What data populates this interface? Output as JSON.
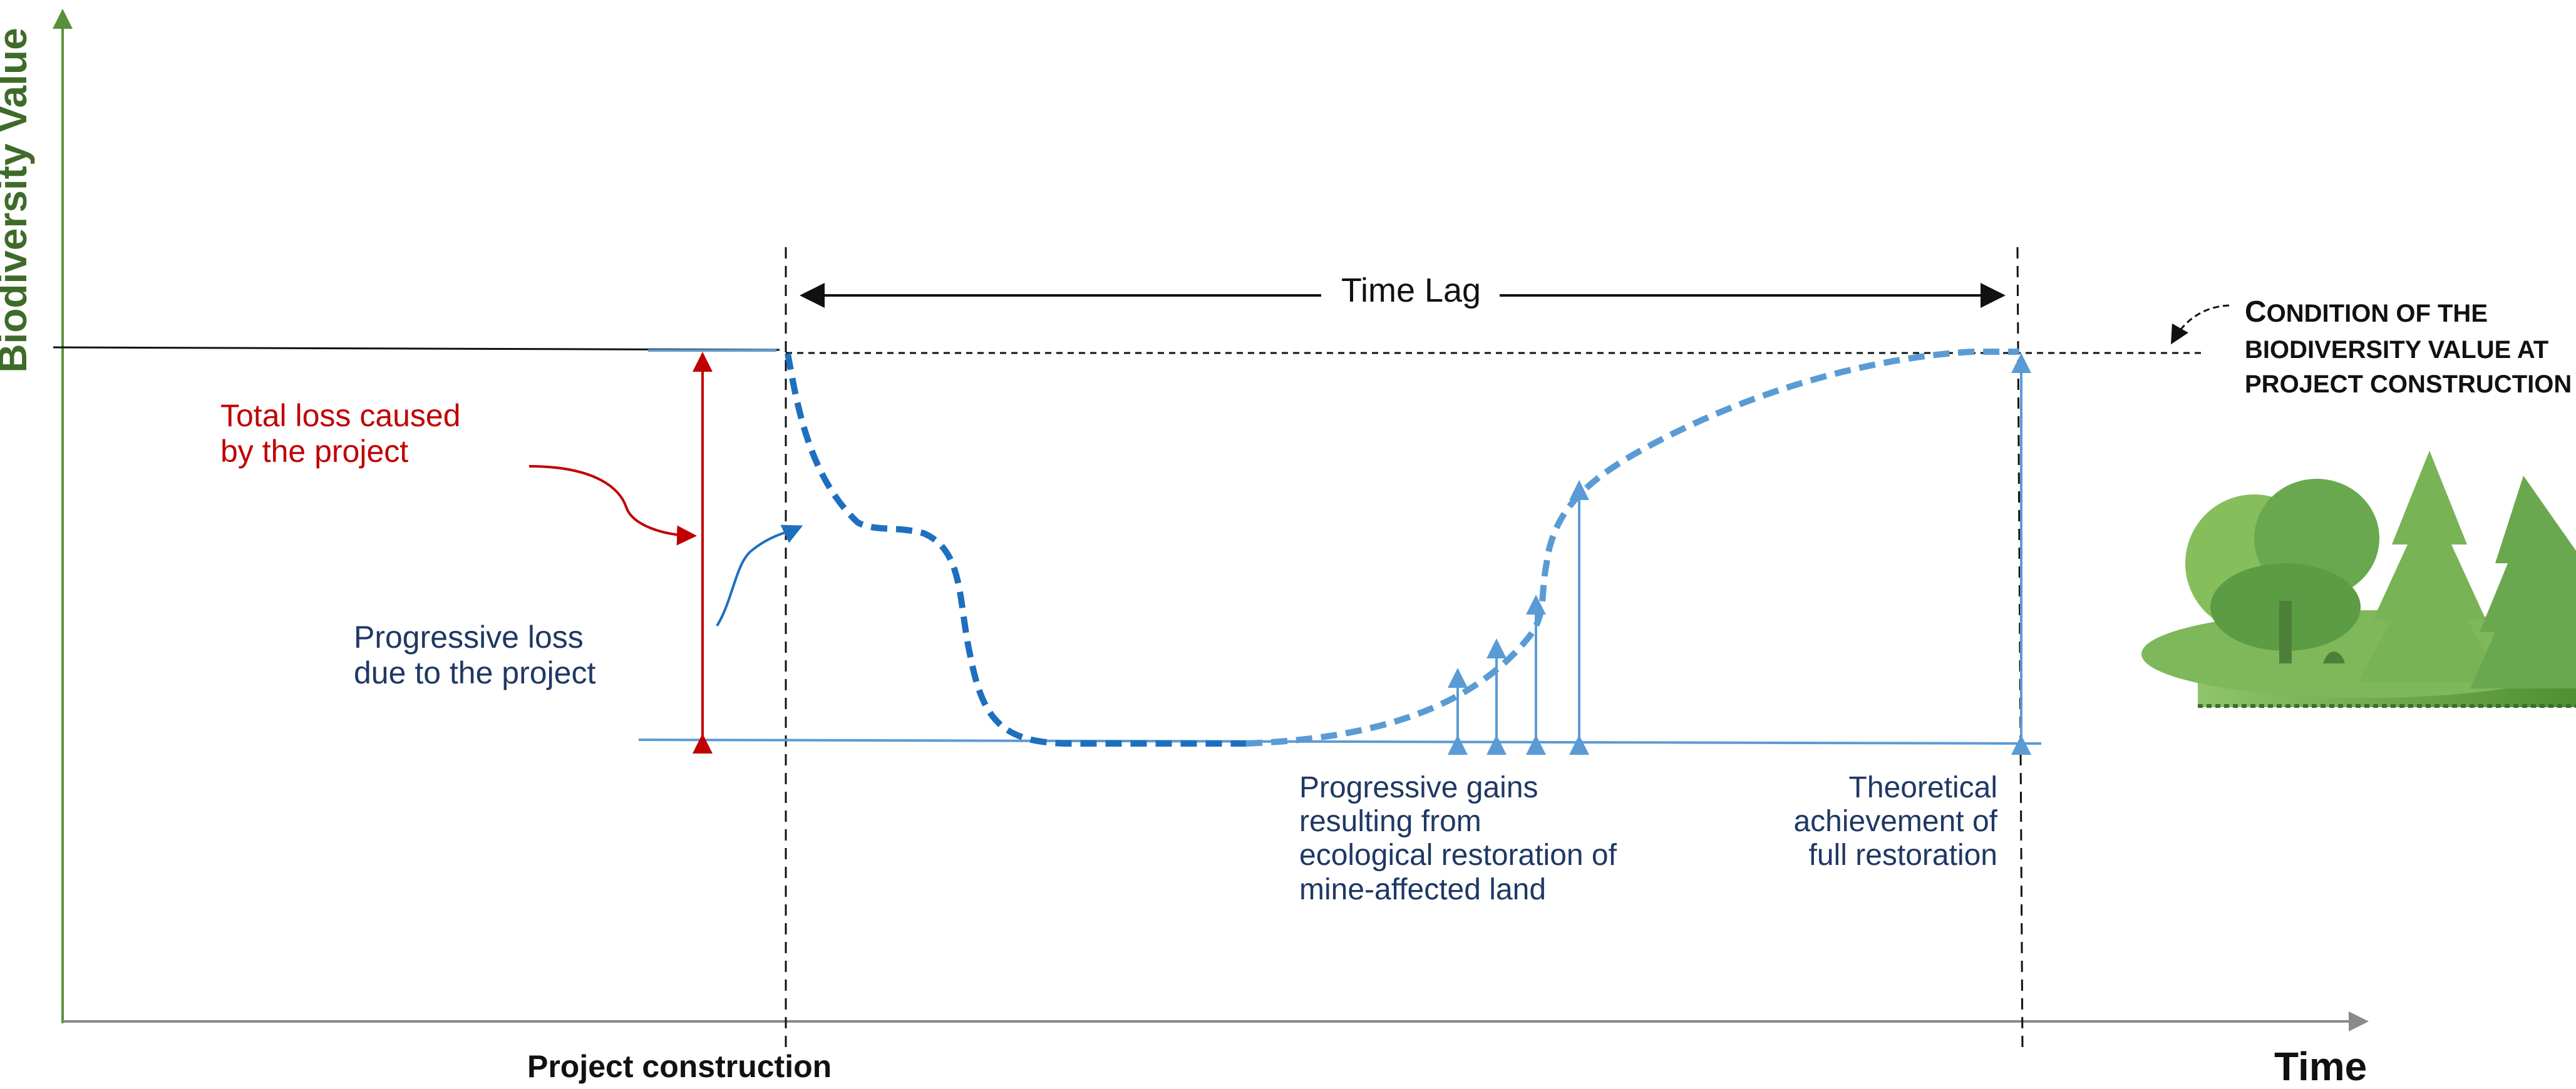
{
  "axes": {
    "y_label": "Biodiversity Value",
    "x_label": "Time"
  },
  "labels": {
    "project_construction": "Project construction",
    "time_lag": "Time Lag",
    "total_loss": [
      "Total loss caused",
      "by the project"
    ],
    "progressive_loss": [
      "Progressive loss",
      "due to the project"
    ],
    "progressive_gains": [
      "Progressive gains",
      "resulting from",
      "ecological restoration of",
      "mine-affected land"
    ],
    "theoretical": [
      "Theoretical",
      "achievement of",
      "full restoration"
    ],
    "condition_first_letter": "C",
    "condition_rest_first_line": "ONDITION OF THE",
    "condition_lines": [
      "BIODIVERSITY VALUE AT",
      "PROJECT CONSTRUCTION"
    ]
  },
  "colors": {
    "axis": "#8a8a8a",
    "y_axis_arrow": "#5a8f3c",
    "baseline": "#111111",
    "loss_arrow": "#c00000",
    "dashed_curve_dark": "#1e6fbf",
    "dashed_curve_light": "#5b9bd5",
    "floor_line": "#5b9bd5",
    "gain_arrows": "#5b9bd5",
    "text_dark_blue": "#1f3864",
    "tree_green": "#6aa84f"
  },
  "icons": [
    "trees-illustration"
  ]
}
